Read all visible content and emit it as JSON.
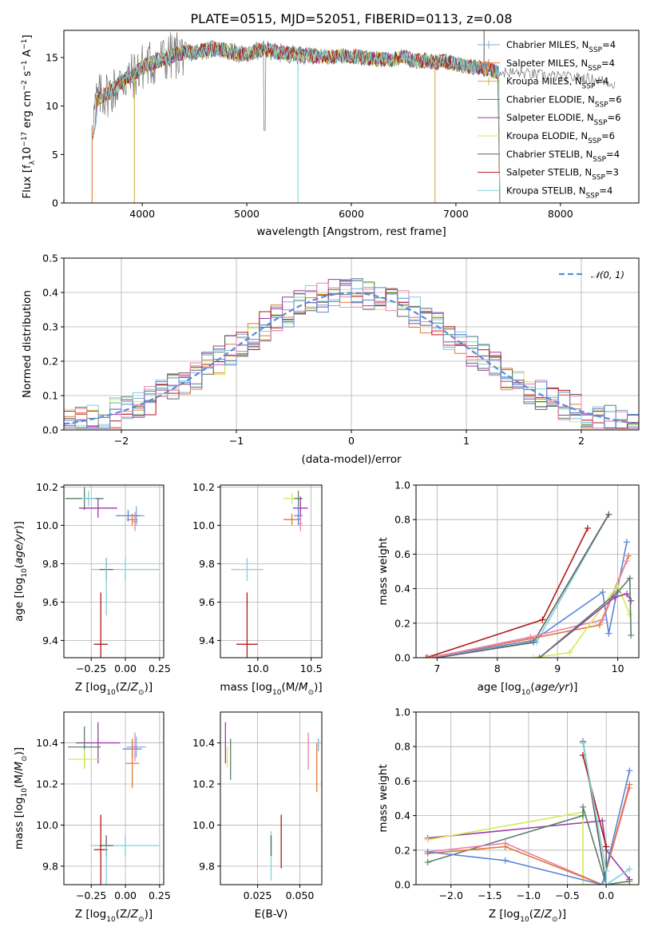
{
  "figure_title": "PLATE=0515, MJD=52051, FIBERID=0113, z=0.08",
  "colors": {
    "chabrier_miles": "#7eb0d8",
    "salpeter_miles": "#e07a35",
    "kroupa_miles": "#c8b050",
    "chabrier_elodie": "#5b8068",
    "salpeter_elodie": "#9a3ca8",
    "kroupa_elodie": "#d6ea55",
    "chabrier_stelib": "#606060",
    "salpeter_stelib": "#b01818",
    "kroupa_stelib": "#80d0d8",
    "gaussian": "#5b8ad8",
    "magenta_pink": "#e880b0",
    "blue": "#5b85d8"
  },
  "chart_data": [
    {
      "id": "spectrum",
      "type": "line",
      "title": "PLATE=0515, MJD=52051, FIBERID=0113, z=0.08",
      "xlabel": "wavelength [Angstrom, rest frame]",
      "ylabel": "Flux [f_λ10^−17 erg cm^−2 s^−1 A^−1]",
      "xlim": [
        3250,
        8750
      ],
      "ylim": [
        0,
        17.8
      ],
      "xticks": [
        4000,
        5000,
        6000,
        7000,
        8000
      ],
      "yticks": [
        0,
        5,
        10,
        15
      ],
      "legend_position": "right",
      "legend": [
        "Chabrier MILES, N_SSP=4",
        "Salpeter MILES, N_SSP=4",
        "Kroupa MILES, N_SSP=4",
        "Chabrier ELODIE, N_SSP=6",
        "Salpeter ELODIE, N_SSP=6",
        "Kroupa ELODIE, N_SSP=6",
        "Chabrier STELIB, N_SSP=4",
        "Salpeter STELIB, N_SSP=3",
        "Kroupa STELIB, N_SSP=4"
      ],
      "continuum": {
        "x": [
          3520,
          3560,
          3600,
          3700,
          3800,
          3900,
          4000,
          4100,
          4200,
          4300,
          4400,
          4500,
          4600,
          4700,
          4800,
          4900,
          5000,
          5100,
          5200,
          5300,
          5400,
          5500,
          5600,
          5700,
          5800,
          5900,
          6000,
          6100,
          6200,
          6300,
          6400,
          6500,
          6600,
          6700,
          6800,
          6900,
          7000,
          7100,
          7200,
          7300,
          7400
        ],
        "y": [
          8.0,
          10.5,
          11.0,
          11.5,
          12.5,
          13.0,
          14.0,
          14.5,
          14.8,
          15.2,
          15.6,
          15.5,
          15.8,
          15.9,
          15.7,
          15.4,
          15.3,
          15.7,
          15.8,
          15.5,
          15.4,
          15.3,
          15.2,
          15.1,
          15.0,
          15.2,
          15.1,
          15.0,
          14.9,
          14.8,
          14.8,
          15.2,
          14.6,
          14.7,
          14.5,
          14.6,
          14.3,
          14.1,
          14.0,
          13.8,
          13.5
        ]
      },
      "data_extension": {
        "x": [
          7400,
          7600,
          7800,
          8000,
          8200,
          8400,
          8520
        ],
        "y": [
          13.5,
          13.4,
          13.2,
          13.0,
          12.9,
          12.6,
          12.3
        ]
      }
    },
    {
      "id": "residual-histogram",
      "type": "line",
      "xlabel": "(data-model)/error",
      "ylabel": "Normed distribution",
      "xlim": [
        -2.5,
        2.5
      ],
      "ylim": [
        0,
        0.5
      ],
      "xticks": [
        -2,
        -1,
        0,
        1,
        2
      ],
      "xticklabels": [
        "−2",
        "−1",
        "0",
        "1",
        "2"
      ],
      "yticks": [
        0.0,
        0.1,
        0.2,
        0.3,
        0.4,
        0.5
      ],
      "yticklabels": [
        "0.0",
        "0.1",
        "0.2",
        "0.3",
        "0.4",
        "0.5"
      ],
      "legend": [
        "𝒩(0, 1)"
      ],
      "legend_position": "top-right",
      "grid": true,
      "bins": [
        -2.5,
        -2.4,
        -2.3,
        -2.2,
        -2.1,
        -2.0,
        -1.9,
        -1.8,
        -1.7,
        -1.6,
        -1.5,
        -1.4,
        -1.3,
        -1.2,
        -1.1,
        -1.0,
        -0.9,
        -0.8,
        -0.7,
        -0.6,
        -0.5,
        -0.4,
        -0.3,
        -0.2,
        -0.1,
        0.0,
        0.1,
        0.2,
        0.3,
        0.4,
        0.5,
        0.6,
        0.7,
        0.8,
        0.9,
        1.0,
        1.1,
        1.2,
        1.3,
        1.4,
        1.5,
        1.6,
        1.7,
        1.8,
        1.9,
        2.0,
        2.1,
        2.2,
        2.3,
        2.4,
        2.5
      ]
    },
    {
      "id": "age-vs-Z",
      "type": "scatter",
      "xlabel": "Z [log10(Z/Z⊙)]",
      "ylabel": "age  [log10(age/yr)]",
      "xlim": [
        -0.45,
        0.28
      ],
      "ylim": [
        9.31,
        10.21
      ],
      "xticks": [
        -0.25,
        0.0,
        0.25
      ],
      "xticklabels": [
        "−0.25",
        "0.00",
        "0.25"
      ],
      "yticks": [
        9.4,
        9.6,
        9.8,
        10.0,
        10.2
      ],
      "yticklabels": [
        "9.4",
        "9.6",
        "9.8",
        "10.0",
        "10.2"
      ],
      "grid": true,
      "points": [
        {
          "c": "kroupa_elodie",
          "x": -0.3,
          "y": 10.14,
          "xe": 0.11,
          "ye": 0.04
        },
        {
          "c": "chabrier_elodie",
          "x": -0.3,
          "y": 10.14,
          "xe": 0.14,
          "ye": 0.06
        },
        {
          "c": "salpeter_elodie",
          "x": -0.2,
          "y": 10.09,
          "xe": 0.14,
          "ye": 0.05
        },
        {
          "c": "kroupa_stelib",
          "x": -0.27,
          "y": 10.14,
          "xe": 0.05,
          "ye": 0.04
        },
        {
          "c": "chabrier_miles",
          "x": 0.08,
          "y": 10.05,
          "xe": 0.06,
          "ye": 0.05
        },
        {
          "c": "salpeter_miles",
          "x": 0.05,
          "y": 10.03,
          "xe": 0.04,
          "ye": 0.03
        },
        {
          "c": "magenta_pink",
          "x": 0.07,
          "y": 10.02,
          "xe": 0.02,
          "ye": 0.05
        },
        {
          "c": "blue",
          "x": 0.02,
          "y": 10.05,
          "xe": 0.09,
          "ye": 0.03
        },
        {
          "c": "kroupa_stelib",
          "x": 0.0,
          "y": 9.77,
          "xe": 0.25,
          "ye": 0.06
        },
        {
          "c": "chabrier_stelib",
          "x": -0.14,
          "y": 9.77,
          "xe": 0.05,
          "ye": 0.06
        },
        {
          "c": "salpeter_stelib",
          "x": -0.18,
          "y": 9.38,
          "xe": 0.05,
          "ye": 0.27
        },
        {
          "c": "kroupa_stelib",
          "x": -0.14,
          "y": 9.68,
          "xe": 0.0,
          "ye": 0.15
        }
      ]
    },
    {
      "id": "age-vs-mass",
      "type": "scatter",
      "xlabel": "mass [log10(M/M⊙)]",
      "ylabel": "",
      "xlim": [
        9.65,
        10.6
      ],
      "ylim": [
        9.31,
        10.21
      ],
      "xticks": [
        10.0,
        10.5
      ],
      "xticklabels": [
        "10.0",
        "10.5"
      ],
      "yticks": [
        9.4,
        9.6,
        9.8,
        10.0,
        10.2
      ],
      "yticklabels": [
        "9.4",
        "9.6",
        "9.8",
        "10.0",
        "10.2"
      ],
      "grid": true,
      "points": [
        {
          "c": "kroupa_elodie",
          "x": 10.32,
          "y": 10.14,
          "xe": 0.08,
          "ye": 0.03
        },
        {
          "c": "chabrier_elodie",
          "x": 10.38,
          "y": 10.14,
          "xe": 0.04,
          "ye": 0.04
        },
        {
          "c": "salpeter_elodie",
          "x": 10.4,
          "y": 10.09,
          "xe": 0.07,
          "ye": 0.06
        },
        {
          "c": "salpeter_miles",
          "x": 10.32,
          "y": 10.03,
          "xe": 0.08,
          "ye": 0.03
        },
        {
          "c": "blue",
          "x": 10.38,
          "y": 10.05,
          "xe": 0.04,
          "ye": 0.05
        },
        {
          "c": "magenta_pink",
          "x": 10.4,
          "y": 10.01,
          "xe": 0.02,
          "ye": 0.04
        },
        {
          "c": "kroupa_stelib",
          "x": 9.9,
          "y": 9.77,
          "xe": 0.15,
          "ye": 0.06
        },
        {
          "c": "salpeter_stelib",
          "x": 9.9,
          "y": 9.38,
          "xe": 0.1,
          "ye": 0.27
        }
      ]
    },
    {
      "id": "weight-vs-age",
      "type": "line",
      "xlabel": "age  [log10(age/yr)]",
      "ylabel": "mass weight",
      "xlim": [
        6.65,
        10.35
      ],
      "ylim": [
        0,
        1.0
      ],
      "xticks": [
        7,
        8,
        9,
        10
      ],
      "yticks": [
        0.0,
        0.2,
        0.4,
        0.6,
        0.8,
        1.0
      ],
      "yticklabels": [
        "0.0",
        "0.2",
        "0.4",
        "0.6",
        "0.8",
        "1.0"
      ],
      "grid": true,
      "series": [
        {
          "c": "salpeter_stelib",
          "x": [
            6.82,
            8.75,
            9.5
          ],
          "y": [
            0.0,
            0.22,
            0.75
          ]
        },
        {
          "c": "kroupa_stelib",
          "x": [
            7.0,
            8.65,
            9.85
          ],
          "y": [
            0.0,
            0.09,
            0.83
          ]
        },
        {
          "c": "chabrier_stelib",
          "x": [
            7.0,
            8.6,
            9.85
          ],
          "y": [
            0.0,
            0.09,
            0.83
          ]
        },
        {
          "c": "blue",
          "x": [
            6.85,
            8.6,
            9.75,
            9.85,
            10.15
          ],
          "y": [
            0.0,
            0.1,
            0.38,
            0.14,
            0.67
          ]
        },
        {
          "c": "salpeter_miles",
          "x": [
            6.85,
            8.55,
            9.7,
            10.18
          ],
          "y": [
            0.0,
            0.11,
            0.19,
            0.59
          ]
        },
        {
          "c": "magenta_pink",
          "x": [
            6.9,
            8.55,
            9.75,
            10.15
          ],
          "y": [
            0.0,
            0.12,
            0.22,
            0.56
          ]
        },
        {
          "c": "kroupa_elodie",
          "x": [
            8.6,
            9.2,
            10.0,
            10.2
          ],
          "y": [
            0.0,
            0.03,
            0.42,
            0.25
          ]
        },
        {
          "c": "salpeter_elodie",
          "x": [
            8.7,
            9.95,
            10.15,
            10.22
          ],
          "y": [
            0.0,
            0.35,
            0.37,
            0.33
          ]
        },
        {
          "c": "chabrier_elodie",
          "x": [
            8.7,
            10.0,
            10.2,
            10.22
          ],
          "y": [
            0.0,
            0.38,
            0.46,
            0.13
          ]
        }
      ]
    },
    {
      "id": "mass-vs-Z",
      "type": "scatter",
      "xlabel": "Z [log10(Z/Z⊙)]",
      "ylabel": "mass [log10(M/M⊙)]",
      "xlim": [
        -0.45,
        0.28
      ],
      "ylim": [
        9.71,
        10.55
      ],
      "xticks": [
        -0.25,
        0.0,
        0.25
      ],
      "xticklabels": [
        "−0.25",
        "0.00",
        "0.25"
      ],
      "yticks": [
        9.8,
        10.0,
        10.2,
        10.4
      ],
      "yticklabels": [
        "9.8",
        "10.0",
        "10.2",
        "10.4"
      ],
      "grid": true,
      "points": [
        {
          "c": "salpeter_elodie",
          "x": -0.2,
          "y": 10.4,
          "xe": 0.16,
          "ye": 0.1
        },
        {
          "c": "chabrier_elodie",
          "x": -0.3,
          "y": 10.38,
          "xe": 0.12,
          "ye": 0.1
        },
        {
          "c": "kroupa_elodie",
          "x": -0.3,
          "y": 10.32,
          "xe": 0.12,
          "ye": 0.05
        },
        {
          "c": "chabrier_miles",
          "x": 0.08,
          "y": 10.38,
          "xe": 0.07,
          "ye": 0.05
        },
        {
          "c": "blue",
          "x": 0.05,
          "y": 10.37,
          "xe": 0.07,
          "ye": 0.04
        },
        {
          "c": "salpeter_miles",
          "x": 0.05,
          "y": 10.3,
          "xe": 0.05,
          "ye": 0.12
        },
        {
          "c": "magenta_pink",
          "x": 0.07,
          "y": 10.38,
          "xe": 0.02,
          "ye": 0.07
        },
        {
          "c": "kroupa_stelib",
          "x": 0.0,
          "y": 9.9,
          "xe": 0.25,
          "ye": 0.05
        },
        {
          "c": "chabrier_stelib",
          "x": -0.14,
          "y": 9.9,
          "xe": 0.05,
          "ye": 0.05
        },
        {
          "c": "salpeter_stelib",
          "x": -0.18,
          "y": 9.88,
          "xe": 0.05,
          "ye": 0.17
        },
        {
          "c": "kroupa_stelib",
          "x": -0.14,
          "y": 9.8,
          "xe": 0.0,
          "ye": 0.1
        }
      ]
    },
    {
      "id": "mass-vs-ebv",
      "type": "scatter",
      "xlabel": "E(B-V)",
      "ylabel": "",
      "xlim": [
        0.003,
        0.063
      ],
      "ylim": [
        9.71,
        10.55
      ],
      "xticks": [
        0.025,
        0.05
      ],
      "xticklabels": [
        "0.025",
        "0.050"
      ],
      "yticks": [
        9.8,
        10.0,
        10.2,
        10.4
      ],
      "yticklabels": [
        "9.8",
        "10.0",
        "10.2",
        "10.4"
      ],
      "grid": true,
      "points": [
        {
          "c": "salpeter_elodie",
          "x": 0.006,
          "y": 10.4,
          "xe": 0.0,
          "ye": 0.1
        },
        {
          "c": "chabrier_elodie",
          "x": 0.009,
          "y": 10.32,
          "xe": 0.0,
          "ye": 0.1
        },
        {
          "c": "kroupa_elodie",
          "x": 0.007,
          "y": 10.33,
          "xe": 0.0,
          "ye": 0.05
        },
        {
          "c": "magenta_pink",
          "x": 0.055,
          "y": 10.36,
          "xe": 0.0,
          "ye": 0.09
        },
        {
          "c": "salpeter_miles",
          "x": 0.06,
          "y": 10.28,
          "xe": 0.0,
          "ye": 0.12
        },
        {
          "c": "chabrier_miles",
          "x": 0.061,
          "y": 10.39,
          "xe": 0.0,
          "ye": 0.03
        },
        {
          "c": "salpeter_stelib",
          "x": 0.039,
          "y": 9.92,
          "xe": 0.0,
          "ye": 0.13
        },
        {
          "c": "kroupa_stelib",
          "x": 0.033,
          "y": 9.85,
          "xe": 0.0,
          "ye": 0.12
        },
        {
          "c": "chabrier_stelib",
          "x": 0.033,
          "y": 9.9,
          "xe": 0.0,
          "ye": 0.05
        }
      ]
    },
    {
      "id": "weight-vs-Z",
      "type": "line",
      "xlabel": "Z [log10(Z/Z⊙)]",
      "ylabel": "mass weight",
      "xlim": [
        -2.45,
        0.42
      ],
      "ylim": [
        0,
        1.0
      ],
      "xticks": [
        -2.0,
        -1.5,
        -1.0,
        -0.5,
        0.0
      ],
      "xticklabels": [
        "−2.0",
        "−1.5",
        "−1.0",
        "−0.5",
        "0.0"
      ],
      "yticks": [
        0.0,
        0.2,
        0.4,
        0.6,
        0.8,
        1.0
      ],
      "yticklabels": [
        "0.0",
        "0.2",
        "0.4",
        "0.6",
        "0.8",
        "1.0"
      ],
      "grid": true,
      "series": [
        {
          "c": "salpeter_elodie",
          "x": [
            -2.3,
            -0.05,
            0.0,
            0.3
          ],
          "y": [
            0.27,
            0.37,
            0.2,
            0.03
          ]
        },
        {
          "c": "kroupa_elodie",
          "x": [
            -2.3,
            -0.3,
            -0.3,
            0.3
          ],
          "y": [
            0.26,
            0.42,
            0.0,
            0.0
          ]
        },
        {
          "c": "chabrier_elodie",
          "x": [
            -2.3,
            -0.3,
            -0.3,
            0.0,
            0.3
          ],
          "y": [
            0.13,
            0.4,
            0.45,
            0.0,
            0.02
          ]
        },
        {
          "c": "magenta_pink",
          "x": [
            -2.3,
            -1.3,
            -0.05,
            0.3
          ],
          "y": [
            0.19,
            0.24,
            0.0,
            0.56
          ]
        },
        {
          "c": "salpeter_miles",
          "x": [
            -2.3,
            -1.3,
            -0.05,
            0.3
          ],
          "y": [
            0.18,
            0.22,
            0.0,
            0.58
          ]
        },
        {
          "c": "blue",
          "x": [
            -2.3,
            -1.3,
            -0.05,
            0.3
          ],
          "y": [
            0.19,
            0.14,
            0.0,
            0.66
          ]
        },
        {
          "c": "chabrier_stelib",
          "x": [
            -0.3,
            0.0,
            0.0
          ],
          "y": [
            0.83,
            0.0,
            0.22
          ]
        },
        {
          "c": "salpeter_stelib",
          "x": [
            -0.3,
            0.0
          ],
          "y": [
            0.75,
            0.22
          ]
        },
        {
          "c": "kroupa_stelib",
          "x": [
            -0.3,
            0.0,
            0.0,
            0.3
          ],
          "y": [
            0.82,
            0.08,
            0.0,
            0.09
          ]
        }
      ]
    }
  ]
}
